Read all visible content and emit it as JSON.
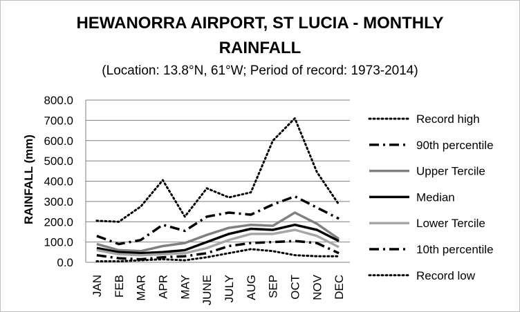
{
  "chart_data": {
    "type": "line",
    "title_line1": "HEWANORRA AIRPORT, ST LUCIA - MONTHLY",
    "title_line2": "RAINFALL",
    "subtitle": "(Location: 13.8°N, 61°W; Period of record: 1973-2014)",
    "xlabel": "",
    "ylabel": "RAINFALL (mm)",
    "ylim": [
      0,
      800
    ],
    "ytick_step": 100,
    "y_ticks": [
      "0.0",
      "100.0",
      "200.0",
      "300.0",
      "400.0",
      "500.0",
      "600.0",
      "700.0",
      "800.0"
    ],
    "grid": true,
    "legend_position": "right",
    "categories": [
      "JAN",
      "FEB",
      "MAR",
      "APR",
      "MAY",
      "JUNE",
      "JULY",
      "AUG",
      "SEP",
      "OCT",
      "NOV",
      "DEC"
    ],
    "series": [
      {
        "name": "Record high",
        "style": "dotted",
        "color": "#000000",
        "width": 3,
        "values": [
          205,
          200,
          275,
          405,
          225,
          365,
          320,
          345,
          600,
          710,
          445,
          285
        ]
      },
      {
        "name": "90th percentile",
        "style": "dashdot",
        "color": "#000000",
        "width": 3.5,
        "values": [
          130,
          90,
          110,
          185,
          155,
          225,
          245,
          235,
          285,
          325,
          270,
          215
        ]
      },
      {
        "name": "Upper Tercile",
        "style": "solid",
        "color": "#808080",
        "width": 3.5,
        "values": [
          90,
          60,
          55,
          80,
          95,
          135,
          170,
          185,
          180,
          245,
          190,
          115
        ]
      },
      {
        "name": "Median",
        "style": "solid",
        "color": "#000000",
        "width": 3.5,
        "values": [
          70,
          50,
          45,
          50,
          60,
          100,
          140,
          165,
          160,
          185,
          160,
          105
        ]
      },
      {
        "name": "Lower Tercile",
        "style": "solid",
        "color": "#a6a6a6",
        "width": 3.5,
        "values": [
          60,
          40,
          35,
          40,
          45,
          70,
          110,
          140,
          140,
          160,
          130,
          75
        ]
      },
      {
        "name": "10th percentile",
        "style": "dashdot",
        "color": "#000000",
        "width": 3.5,
        "values": [
          35,
          20,
          15,
          25,
          30,
          45,
          80,
          95,
          100,
          105,
          95,
          45
        ]
      },
      {
        "name": "Record low",
        "style": "dotted",
        "color": "#000000",
        "width": 3,
        "values": [
          5,
          5,
          10,
          15,
          10,
          25,
          45,
          65,
          55,
          35,
          30,
          30
        ]
      }
    ]
  }
}
